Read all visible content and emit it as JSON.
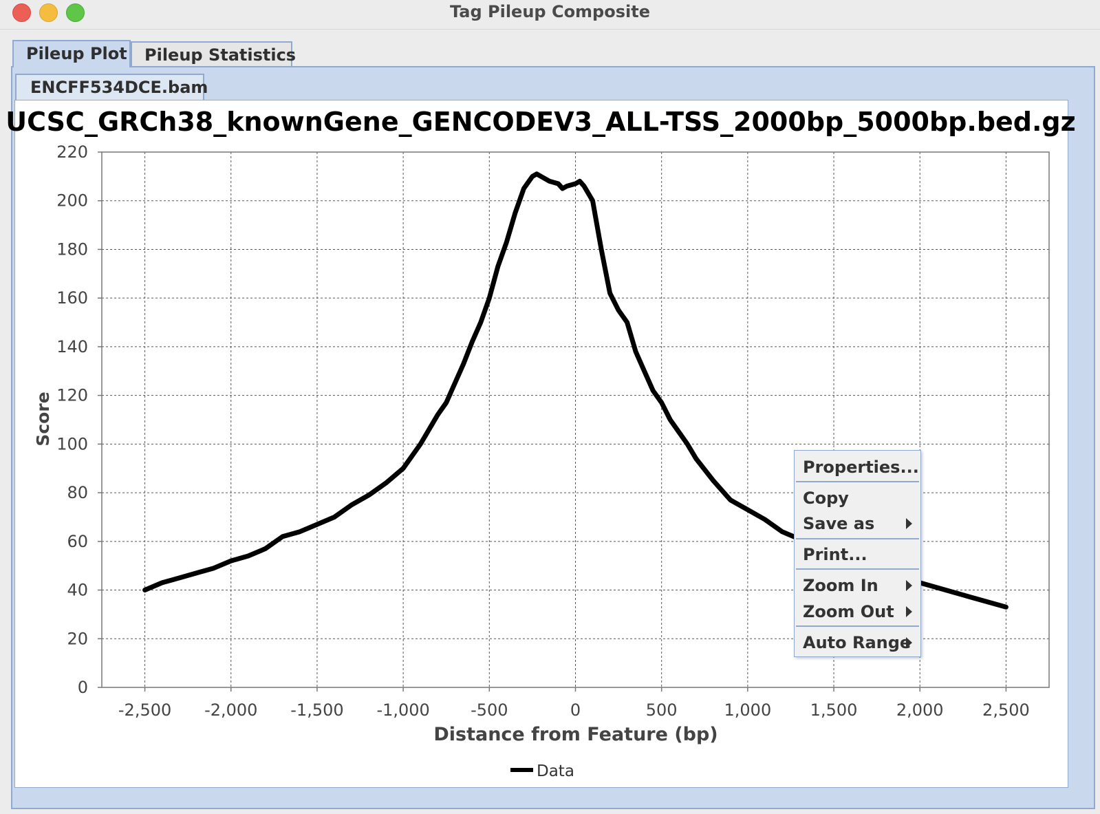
{
  "window": {
    "title": "Tag Pileup Composite"
  },
  "tabs": [
    {
      "label": "Pileup Plot",
      "active": true
    },
    {
      "label": "Pileup Statistics",
      "active": false
    }
  ],
  "file_tab": {
    "label": "ENCFF534DCE.bam"
  },
  "context_menu": {
    "items": [
      {
        "label": "Properties...",
        "submenu": false
      },
      {
        "label": "Copy",
        "submenu": false
      },
      {
        "label": "Save as",
        "submenu": true
      },
      {
        "label": "Print...",
        "submenu": false
      },
      {
        "label": "Zoom In",
        "submenu": true
      },
      {
        "label": "Zoom Out",
        "submenu": true
      },
      {
        "label": "Auto Range",
        "submenu": true
      }
    ]
  },
  "chart_data": {
    "type": "line",
    "title": "UCSC_GRCh38_knownGene_GENCODEV3_ALL-TSS_2000bp_5000bp.bed.gz",
    "xlabel": "Distance from Feature (bp)",
    "ylabel": "Score",
    "xlim": [
      -2750,
      2750
    ],
    "ylim": [
      0,
      220
    ],
    "xticks": [
      -2500,
      -2000,
      -1500,
      -1000,
      -500,
      0,
      500,
      1000,
      1500,
      2000,
      2500
    ],
    "xtick_labels": [
      "-2,500",
      "-2,000",
      "-1,500",
      "-1,000",
      "-500",
      "0",
      "500",
      "1,000",
      "1,500",
      "2,000",
      "2,500"
    ],
    "yticks": [
      0,
      20,
      40,
      60,
      80,
      100,
      120,
      140,
      160,
      180,
      200,
      220
    ],
    "ytick_labels": [
      "0",
      "20",
      "40",
      "60",
      "80",
      "100",
      "120",
      "140",
      "160",
      "180",
      "200",
      "220"
    ],
    "grid": true,
    "legend_position": "bottom-center",
    "series": [
      {
        "name": "Data",
        "color": "#000000",
        "x": [
          -2500,
          -2400,
          -2300,
          -2200,
          -2100,
          -2000,
          -1900,
          -1800,
          -1700,
          -1600,
          -1500,
          -1400,
          -1300,
          -1200,
          -1100,
          -1000,
          -900,
          -800,
          -750,
          -700,
          -650,
          -600,
          -550,
          -500,
          -450,
          -400,
          -350,
          -300,
          -250,
          -225,
          -200,
          -150,
          -100,
          -75,
          -50,
          0,
          25,
          50,
          100,
          150,
          200,
          250,
          300,
          350,
          400,
          450,
          500,
          550,
          600,
          650,
          700,
          800,
          900,
          1000,
          1100,
          1200,
          1300,
          1400,
          1500,
          1600,
          1700,
          1800,
          1900,
          2000,
          2100,
          2200,
          2300,
          2400,
          2500
        ],
        "values": [
          40,
          43,
          45,
          47,
          49,
          52,
          54,
          57,
          62,
          64,
          67,
          70,
          75,
          79,
          84,
          90,
          100,
          112,
          117,
          125,
          133,
          142,
          150,
          160,
          173,
          183,
          195,
          205,
          210,
          211,
          210,
          208,
          207,
          205,
          206,
          207,
          208,
          206,
          200,
          180,
          162,
          155,
          150,
          138,
          130,
          122,
          117,
          110,
          105,
          100,
          94,
          85,
          77,
          73,
          69,
          64,
          61,
          58,
          55,
          51,
          49,
          47,
          45,
          43,
          41,
          39,
          37,
          35,
          33
        ]
      }
    ]
  }
}
